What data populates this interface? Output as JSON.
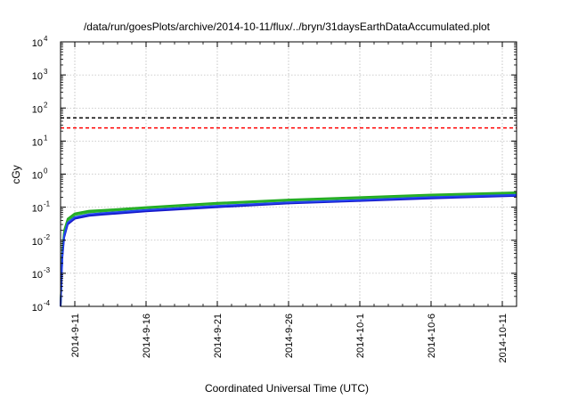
{
  "chart_data": {
    "type": "line",
    "title": "/data/run/goesPlots/archive/2014-10-11/flux/../bryn/31daysEarthDataAccumulated.plot",
    "xlabel": "Coordinated Universal Time (UTC)",
    "ylabel": "cGy",
    "y_scale": "log",
    "ylim": [
      0.0001,
      10000
    ],
    "xlim": [
      "2014-09-10",
      "2014-10-12"
    ],
    "grid": true,
    "y_ticks": [
      {
        "base": "10",
        "exp": "-4",
        "value": 0.0001
      },
      {
        "base": "10",
        "exp": "-3",
        "value": 0.001
      },
      {
        "base": "10",
        "exp": "-2",
        "value": 0.01
      },
      {
        "base": "10",
        "exp": "-1",
        "value": 0.1
      },
      {
        "base": "10",
        "exp": "0",
        "value": 1
      },
      {
        "base": "10",
        "exp": "1",
        "value": 10
      },
      {
        "base": "10",
        "exp": "2",
        "value": 100
      },
      {
        "base": "10",
        "exp": "3",
        "value": 1000
      },
      {
        "base": "10",
        "exp": "4",
        "value": 10000
      }
    ],
    "x_ticks": [
      {
        "label": "2014-9-11",
        "date": "2014-09-11"
      },
      {
        "label": "2014-9-16",
        "date": "2014-09-16"
      },
      {
        "label": "2014-9-21",
        "date": "2014-09-21"
      },
      {
        "label": "2014-9-26",
        "date": "2014-09-26"
      },
      {
        "label": "2014-10-1",
        "date": "2014-10-01"
      },
      {
        "label": "2014-10-6",
        "date": "2014-10-06"
      },
      {
        "label": "2014-10-11",
        "date": "2014-10-11"
      }
    ],
    "thresholds": [
      {
        "value": 50,
        "color": "#000000",
        "style": "dashed"
      },
      {
        "value": 25,
        "color": "#ff0000",
        "style": "dashed"
      }
    ],
    "series": [
      {
        "color": "#22aa22",
        "points": [
          [
            "2014-09-10T00:00",
            0.0001
          ],
          [
            "2014-09-10T03:00",
            0.005
          ],
          [
            "2014-09-10T06:00",
            0.02
          ],
          [
            "2014-09-10T12:00",
            0.045
          ],
          [
            "2014-09-11T00:00",
            0.065
          ],
          [
            "2014-09-12T00:00",
            0.078
          ],
          [
            "2014-09-13T00:00",
            0.082
          ],
          [
            "2014-09-16T00:00",
            0.1
          ],
          [
            "2014-09-21T00:00",
            0.135
          ],
          [
            "2014-09-26T00:00",
            0.17
          ],
          [
            "2014-10-01T00:00",
            0.2
          ],
          [
            "2014-10-06T00:00",
            0.24
          ],
          [
            "2014-10-12T00:00",
            0.28
          ]
        ]
      },
      {
        "color": "#2ab32a",
        "points": [
          [
            "2014-09-10T00:00",
            0.0001
          ],
          [
            "2014-09-10T03:00",
            0.004
          ],
          [
            "2014-09-10T06:00",
            0.017
          ],
          [
            "2014-09-10T12:00",
            0.04
          ],
          [
            "2014-09-11T00:00",
            0.058
          ],
          [
            "2014-09-12T00:00",
            0.07
          ],
          [
            "2014-09-13T00:00",
            0.075
          ],
          [
            "2014-09-16T00:00",
            0.093
          ],
          [
            "2014-09-21T00:00",
            0.125
          ],
          [
            "2014-09-26T00:00",
            0.158
          ],
          [
            "2014-10-01T00:00",
            0.185
          ],
          [
            "2014-10-06T00:00",
            0.225
          ],
          [
            "2014-10-12T00:00",
            0.26
          ]
        ]
      },
      {
        "color": "#1515c8",
        "points": [
          [
            "2014-09-10T00:00",
            0.0001
          ],
          [
            "2014-09-10T03:00",
            0.003
          ],
          [
            "2014-09-10T06:00",
            0.012
          ],
          [
            "2014-09-10T12:00",
            0.03
          ],
          [
            "2014-09-11T00:00",
            0.045
          ],
          [
            "2014-09-12T00:00",
            0.055
          ],
          [
            "2014-09-13T00:00",
            0.06
          ],
          [
            "2014-09-16T00:00",
            0.075
          ],
          [
            "2014-09-21T00:00",
            0.1
          ],
          [
            "2014-09-26T00:00",
            0.13
          ],
          [
            "2014-10-01T00:00",
            0.155
          ],
          [
            "2014-10-06T00:00",
            0.185
          ],
          [
            "2014-10-12T00:00",
            0.22
          ]
        ]
      },
      {
        "color": "#2244ee",
        "points": [
          [
            "2014-09-10T00:00",
            0.0001
          ],
          [
            "2014-09-10T03:00",
            0.0035
          ],
          [
            "2014-09-10T06:00",
            0.014
          ],
          [
            "2014-09-10T12:00",
            0.034
          ],
          [
            "2014-09-11T00:00",
            0.05
          ],
          [
            "2014-09-12T00:00",
            0.061
          ],
          [
            "2014-09-13T00:00",
            0.066
          ],
          [
            "2014-09-16T00:00",
            0.082
          ],
          [
            "2014-09-21T00:00",
            0.11
          ],
          [
            "2014-09-26T00:00",
            0.14
          ],
          [
            "2014-10-01T00:00",
            0.165
          ],
          [
            "2014-10-06T00:00",
            0.2
          ],
          [
            "2014-10-12T00:00",
            0.235
          ]
        ]
      }
    ]
  }
}
